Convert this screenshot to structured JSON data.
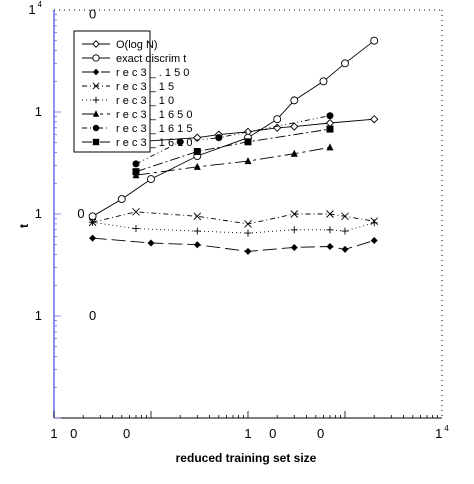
{
  "chart_data": {
    "type": "line",
    "title": "",
    "xlabel": "reduced training set size",
    "ylabel": "t",
    "x_scale": "log",
    "y_scale": "log",
    "xlim": [
      1,
      10000
    ],
    "ylim": [
      1,
      10000
    ],
    "grid": false,
    "legend_position": "top-left",
    "x_tick_labels": [
      {
        "text": "1",
        "sup": "",
        "x": 1
      },
      {
        "text": "0",
        "sup": "",
        "x": 1.6
      },
      {
        "text": "0",
        "sup": "",
        "x": 5.6
      },
      {
        "text": "1",
        "sup": "",
        "x": 100
      },
      {
        "text": "0",
        "sup": "",
        "x": 180
      },
      {
        "text": "0",
        "sup": "",
        "x": 560
      },
      {
        "text": "1",
        "sup": "4",
        "x": 10000
      }
    ],
    "y_tick_labels": [
      {
        "text": "1",
        "sup": "4",
        "y": 10000
      },
      {
        "text": "1",
        "sup": "",
        "y": 1000
      },
      {
        "text": "1",
        "sup": "",
        "y": 100
      },
      {
        "text": "1",
        "sup": "",
        "y": 10
      }
    ],
    "fragment_labels": [
      {
        "text": "0",
        "x": 2.5,
        "y": 9000
      },
      {
        "text": "0",
        "x": 1.8,
        "y": 1000
      },
      {
        "text": "0",
        "x": 3.5,
        "y": 1000
      },
      {
        "text": "0",
        "x": 6.5,
        "y": 1000
      },
      {
        "text": "0",
        "x": 1.9,
        "y": 100
      },
      {
        "text": "0",
        "x": 2.5,
        "y": 10
      }
    ],
    "series": [
      {
        "name": "O(log N)",
        "marker": "diamond-open",
        "dash": "",
        "x": [
          2.5,
          7,
          30,
          50,
          100,
          200,
          300,
          700,
          2000
        ],
        "y": [
          480,
          510,
          560,
          600,
          640,
          700,
          720,
          780,
          850
        ]
      },
      {
        "name": "exact discrim t",
        "marker": "circle-open",
        "dash": "",
        "x": [
          2.5,
          5,
          10,
          30,
          100,
          200,
          300,
          600,
          1000,
          2000
        ],
        "y": [
          95,
          140,
          220,
          370,
          560,
          850,
          1300,
          2000,
          3000,
          5000
        ]
      },
      {
        "name": "r e c 3 _ . 1 5 0",
        "marker": "diamond",
        "dash": "14,5",
        "x": [
          2.5,
          10,
          30,
          100,
          300,
          700,
          1000,
          2000
        ],
        "y": [
          58,
          52,
          50,
          43,
          47,
          48,
          45,
          55
        ]
      },
      {
        "name": "r e c 3 _ 1 5",
        "marker": "x",
        "dash": "5,3,1,3",
        "x": [
          2.5,
          7,
          30,
          100,
          300,
          700,
          1000,
          2000
        ],
        "y": [
          83,
          105,
          95,
          80,
          100,
          100,
          95,
          85
        ]
      },
      {
        "name": "r e c 3 _ 1 0",
        "marker": "plus",
        "dash": "1,3",
        "x": [
          2.5,
          7,
          30,
          100,
          300,
          700,
          1000,
          2000
        ],
        "y": [
          83,
          72,
          68,
          65,
          70,
          70,
          68,
          82
        ]
      },
      {
        "name": "r e c 3 _ 1 6 5 0",
        "marker": "triangle",
        "dash": "14,4,3,4",
        "x": [
          7,
          30,
          100,
          300,
          700
        ],
        "y": [
          240,
          290,
          330,
          390,
          450
        ]
      },
      {
        "name": "r e c 3 _ 1 6 1 5",
        "marker": "circle",
        "dash": "5,3,1,3,1,3",
        "x": [
          7,
          20,
          50,
          700
        ],
        "y": [
          310,
          510,
          560,
          920
        ]
      },
      {
        "name": "r e c 3 _ 1 6 1 0",
        "marker": "square",
        "dash": "10,3,2,3",
        "x": [
          7,
          30,
          100,
          700
        ],
        "y": [
          260,
          410,
          510,
          680
        ]
      }
    ]
  },
  "legend": {
    "entries": [
      {
        "label": "O(log N)"
      },
      {
        "label": "exact discrim t"
      },
      {
        "label": "r e c 3 _ . 1 5 0"
      },
      {
        "label": "r e c 3 _ 1 5"
      },
      {
        "label": "r e c 3 _ 1 0"
      },
      {
        "label": "r e c 3 _ 1 6 5 0"
      },
      {
        "label": "r e c 3 _ 1 6 1 5"
      },
      {
        "label": "r e c 3 _ 1 6 1 0"
      }
    ]
  },
  "colors": {
    "axis_left": "#6a6af0",
    "ink": "#000000",
    "background": "#ffffff"
  }
}
